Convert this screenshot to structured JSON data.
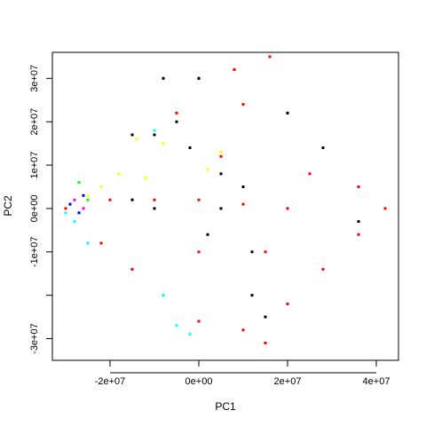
{
  "chart_data": {
    "type": "scatter",
    "title": "",
    "xlabel": "PC1",
    "ylabel": "PC2",
    "xlim": [
      -33000000,
      45000000
    ],
    "ylim": [
      -35000000,
      36000000
    ],
    "x_ticks": [
      {
        "value": -20000000,
        "label": "-2e+07"
      },
      {
        "value": 0,
        "label": "0e+00"
      },
      {
        "value": 20000000,
        "label": "2e+07"
      },
      {
        "value": 40000000,
        "label": "4e+07"
      }
    ],
    "y_ticks": [
      {
        "value": -30000000,
        "label": "-3e+07"
      },
      {
        "value": -20000000,
        "label": ""
      },
      {
        "value": -10000000,
        "label": "-1e+07"
      },
      {
        "value": 0,
        "label": "0e+00"
      },
      {
        "value": 10000000,
        "label": "1e+07"
      },
      {
        "value": 20000000,
        "label": "2e+07"
      },
      {
        "value": 30000000,
        "label": "3e+07"
      }
    ],
    "grid": false,
    "legend": "none",
    "point_colors": [
      "#ff0000",
      "#000000",
      "#ffff00",
      "#00ffff",
      "#00ff00",
      "#0000ff",
      "#ff00ff"
    ],
    "series": [
      {
        "color": "#ff0000",
        "approx_points": [
          [
            0,
            30000000
          ],
          [
            8000000,
            32000000
          ],
          [
            16000000,
            35000000
          ],
          [
            10000000,
            24000000
          ],
          [
            20000000,
            22000000
          ],
          [
            28000000,
            14000000
          ],
          [
            36000000,
            5000000
          ],
          [
            42000000,
            0
          ],
          [
            36000000,
            -6000000
          ],
          [
            28000000,
            -14000000
          ],
          [
            20000000,
            -22000000
          ],
          [
            15000000,
            -31000000
          ],
          [
            10000000,
            -28000000
          ],
          [
            0,
            -26000000
          ],
          [
            -8000000,
            -20000000
          ],
          [
            -15000000,
            -14000000
          ],
          [
            -22000000,
            -8000000
          ],
          [
            -30000000,
            0
          ],
          [
            -20000000,
            2000000
          ],
          [
            -10000000,
            2000000
          ],
          [
            0,
            2000000
          ],
          [
            10000000,
            1000000
          ],
          [
            20000000,
            0
          ],
          [
            5000000,
            12000000
          ],
          [
            -5000000,
            22000000
          ],
          [
            0,
            -10000000
          ],
          [
            15000000,
            -10000000
          ],
          [
            25000000,
            8000000
          ]
        ]
      },
      {
        "color": "#000000",
        "approx_points": [
          [
            0,
            30000000
          ],
          [
            -5000000,
            20000000
          ],
          [
            -10000000,
            17000000
          ],
          [
            -2000000,
            14000000
          ],
          [
            5000000,
            8000000
          ],
          [
            10000000,
            5000000
          ],
          [
            -10000000,
            0
          ],
          [
            -15000000,
            2000000
          ],
          [
            5000000,
            0
          ],
          [
            2000000,
            -6000000
          ],
          [
            12000000,
            -10000000
          ],
          [
            15000000,
            -25000000
          ],
          [
            20000000,
            22000000
          ],
          [
            28000000,
            14000000
          ],
          [
            36000000,
            -3000000
          ],
          [
            -15000000,
            17000000
          ],
          [
            -8000000,
            30000000
          ],
          [
            12000000,
            -20000000
          ]
        ]
      },
      {
        "color": "#ffff00",
        "approx_points": [
          [
            -14000000,
            16000000
          ],
          [
            -12000000,
            7000000
          ],
          [
            -18000000,
            8000000
          ],
          [
            -8000000,
            15000000
          ],
          [
            5000000,
            13000000
          ],
          [
            2000000,
            9000000
          ],
          [
            -22000000,
            5000000
          ],
          [
            -25000000,
            3000000
          ]
        ]
      },
      {
        "color": "#00ffff",
        "approx_points": [
          [
            -30000000,
            -1000000
          ],
          [
            -28000000,
            -3000000
          ],
          [
            -25000000,
            -8000000
          ],
          [
            -8000000,
            -20000000
          ],
          [
            -5000000,
            -27000000
          ],
          [
            -2000000,
            -29000000
          ],
          [
            -10000000,
            18000000
          ]
        ]
      },
      {
        "color": "#00ff00",
        "approx_points": [
          [
            -27000000,
            6000000
          ],
          [
            -25000000,
            2000000
          ],
          [
            -29000000,
            1000000
          ]
        ]
      },
      {
        "color": "#0000ff",
        "approx_points": [
          [
            -29000000,
            1000000
          ],
          [
            -27000000,
            -1000000
          ],
          [
            -26000000,
            3000000
          ]
        ]
      },
      {
        "color": "#ff00ff",
        "approx_points": [
          [
            -28000000,
            2000000
          ],
          [
            -26000000,
            0
          ]
        ]
      }
    ]
  }
}
